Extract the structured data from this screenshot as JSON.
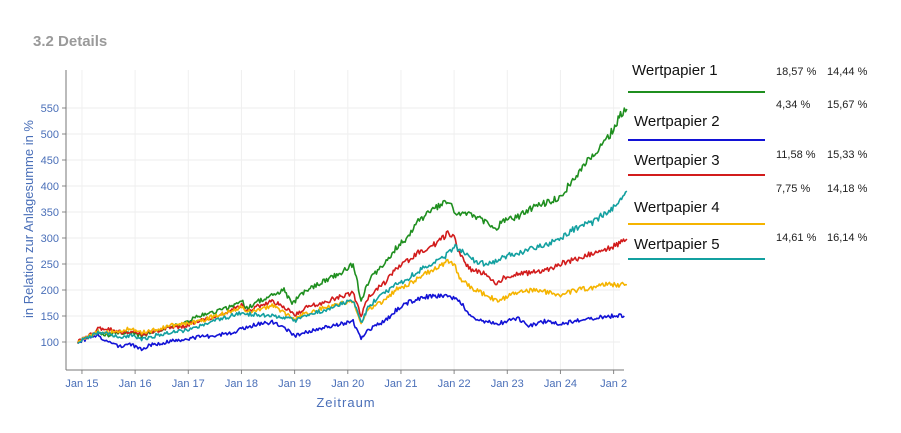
{
  "section": {
    "title": "3.2 Details"
  },
  "chart_data": {
    "type": "line",
    "xlabel": "Zeitraum",
    "ylabel": "in Relation zur Anlagesumme in %",
    "x_ticks": [
      "Jan 15",
      "Jan 16",
      "Jan 17",
      "Jan 18",
      "Jan 19",
      "Jan 20",
      "Jan 21",
      "Jan 22",
      "Jan 23",
      "Jan 24",
      "Jan 2"
    ],
    "y_ticks": [
      100,
      150,
      200,
      250,
      300,
      350,
      400,
      450,
      500,
      550
    ],
    "ylim": [
      50,
      570
    ],
    "xlim": [
      2014.7,
      2025.12
    ],
    "grid": true,
    "series": [
      {
        "name": "Wertpapier 1",
        "color": "#1f8f1f",
        "stat1": "18,57 %",
        "stat2": "14,44 %",
        "points": [
          [
            2014.92,
            100
          ],
          [
            2015.1,
            108
          ],
          [
            2015.3,
            120
          ],
          [
            2015.5,
            112
          ],
          [
            2015.7,
            120
          ],
          [
            2015.9,
            116
          ],
          [
            2016.1,
            112
          ],
          [
            2016.3,
            118
          ],
          [
            2016.5,
            125
          ],
          [
            2016.7,
            130
          ],
          [
            2016.9,
            135
          ],
          [
            2017.2,
            150
          ],
          [
            2017.5,
            158
          ],
          [
            2017.8,
            168
          ],
          [
            2018.0,
            180
          ],
          [
            2018.1,
            165
          ],
          [
            2018.3,
            178
          ],
          [
            2018.5,
            185
          ],
          [
            2018.8,
            200
          ],
          [
            2018.95,
            172
          ],
          [
            2019.1,
            190
          ],
          [
            2019.4,
            210
          ],
          [
            2019.6,
            220
          ],
          [
            2019.9,
            235
          ],
          [
            2020.1,
            250
          ],
          [
            2020.18,
            215
          ],
          [
            2020.25,
            178
          ],
          [
            2020.4,
            220
          ],
          [
            2020.7,
            250
          ],
          [
            2020.9,
            280
          ],
          [
            2021.1,
            300
          ],
          [
            2021.3,
            330
          ],
          [
            2021.6,
            355
          ],
          [
            2021.9,
            370
          ],
          [
            2022.0,
            350
          ],
          [
            2022.3,
            345
          ],
          [
            2022.6,
            330
          ],
          [
            2022.8,
            320
          ],
          [
            2022.95,
            335
          ],
          [
            2023.2,
            340
          ],
          [
            2023.5,
            360
          ],
          [
            2023.8,
            370
          ],
          [
            2024.0,
            380
          ],
          [
            2024.3,
            420
          ],
          [
            2024.6,
            460
          ],
          [
            2024.8,
            480
          ],
          [
            2025.0,
            510
          ],
          [
            2025.15,
            540
          ],
          [
            2025.25,
            548
          ]
        ]
      },
      {
        "name": "Wertpapier 2",
        "color": "#1212d6",
        "stat1": "4,34 %",
        "stat2": "15,67 %",
        "points": [
          [
            2014.92,
            100
          ],
          [
            2015.1,
            106
          ],
          [
            2015.3,
            112
          ],
          [
            2015.5,
            100
          ],
          [
            2015.7,
            92
          ],
          [
            2015.9,
            96
          ],
          [
            2016.1,
            86
          ],
          [
            2016.3,
            95
          ],
          [
            2016.6,
            100
          ],
          [
            2016.9,
            105
          ],
          [
            2017.2,
            110
          ],
          [
            2017.5,
            112
          ],
          [
            2017.8,
            118
          ],
          [
            2018.0,
            125
          ],
          [
            2018.3,
            135
          ],
          [
            2018.6,
            138
          ],
          [
            2018.9,
            120
          ],
          [
            2019.0,
            112
          ],
          [
            2019.3,
            122
          ],
          [
            2019.6,
            130
          ],
          [
            2019.9,
            135
          ],
          [
            2020.1,
            140
          ],
          [
            2020.18,
            122
          ],
          [
            2020.25,
            108
          ],
          [
            2020.4,
            125
          ],
          [
            2020.7,
            140
          ],
          [
            2020.9,
            160
          ],
          [
            2021.1,
            175
          ],
          [
            2021.3,
            182
          ],
          [
            2021.6,
            190
          ],
          [
            2021.9,
            186
          ],
          [
            2022.1,
            180
          ],
          [
            2022.3,
            150
          ],
          [
            2022.5,
            140
          ],
          [
            2022.8,
            135
          ],
          [
            2023.0,
            140
          ],
          [
            2023.2,
            145
          ],
          [
            2023.4,
            130
          ],
          [
            2023.7,
            140
          ],
          [
            2024.0,
            135
          ],
          [
            2024.3,
            140
          ],
          [
            2024.6,
            145
          ],
          [
            2024.9,
            150
          ],
          [
            2025.1,
            150
          ],
          [
            2025.2,
            150
          ]
        ]
      },
      {
        "name": "Wertpapier 3",
        "color": "#d21c1c",
        "stat1": "11,58 %",
        "stat2": "15,33 %",
        "points": [
          [
            2014.92,
            100
          ],
          [
            2015.1,
            110
          ],
          [
            2015.3,
            125
          ],
          [
            2015.5,
            125
          ],
          [
            2015.7,
            120
          ],
          [
            2015.9,
            118
          ],
          [
            2016.1,
            115
          ],
          [
            2016.3,
            118
          ],
          [
            2016.5,
            125
          ],
          [
            2016.7,
            128
          ],
          [
            2016.9,
            130
          ],
          [
            2017.2,
            140
          ],
          [
            2017.5,
            148
          ],
          [
            2017.8,
            160
          ],
          [
            2018.0,
            170
          ],
          [
            2018.1,
            160
          ],
          [
            2018.3,
            168
          ],
          [
            2018.6,
            178
          ],
          [
            2018.9,
            160
          ],
          [
            2019.0,
            152
          ],
          [
            2019.2,
            165
          ],
          [
            2019.5,
            175
          ],
          [
            2019.8,
            185
          ],
          [
            2020.1,
            195
          ],
          [
            2020.18,
            170
          ],
          [
            2020.25,
            150
          ],
          [
            2020.4,
            190
          ],
          [
            2020.7,
            215
          ],
          [
            2020.9,
            240
          ],
          [
            2021.1,
            255
          ],
          [
            2021.3,
            270
          ],
          [
            2021.6,
            285
          ],
          [
            2021.9,
            310
          ],
          [
            2022.0,
            300
          ],
          [
            2022.1,
            270
          ],
          [
            2022.3,
            240
          ],
          [
            2022.6,
            230
          ],
          [
            2022.8,
            210
          ],
          [
            2022.95,
            225
          ],
          [
            2023.2,
            230
          ],
          [
            2023.5,
            235
          ],
          [
            2023.8,
            240
          ],
          [
            2024.0,
            250
          ],
          [
            2024.3,
            260
          ],
          [
            2024.6,
            270
          ],
          [
            2024.9,
            280
          ],
          [
            2025.1,
            290
          ],
          [
            2025.25,
            298
          ]
        ]
      },
      {
        "name": "Wertpapier 4",
        "color": "#f5b400",
        "stat1": "7,75 %",
        "stat2": "14,18 %",
        "points": [
          [
            2014.92,
            100
          ],
          [
            2015.1,
            110
          ],
          [
            2015.3,
            120
          ],
          [
            2015.5,
            118
          ],
          [
            2015.7,
            122
          ],
          [
            2015.9,
            125
          ],
          [
            2016.1,
            118
          ],
          [
            2016.3,
            122
          ],
          [
            2016.6,
            130
          ],
          [
            2016.9,
            135
          ],
          [
            2017.2,
            140
          ],
          [
            2017.5,
            150
          ],
          [
            2017.8,
            160
          ],
          [
            2018.0,
            168
          ],
          [
            2018.1,
            158
          ],
          [
            2018.3,
            162
          ],
          [
            2018.6,
            170
          ],
          [
            2018.9,
            150
          ],
          [
            2019.0,
            145
          ],
          [
            2019.2,
            155
          ],
          [
            2019.5,
            165
          ],
          [
            2019.8,
            172
          ],
          [
            2020.1,
            180
          ],
          [
            2020.18,
            158
          ],
          [
            2020.25,
            138
          ],
          [
            2020.4,
            165
          ],
          [
            2020.7,
            180
          ],
          [
            2020.9,
            200
          ],
          [
            2021.1,
            210
          ],
          [
            2021.3,
            220
          ],
          [
            2021.6,
            240
          ],
          [
            2021.9,
            255
          ],
          [
            2022.0,
            250
          ],
          [
            2022.1,
            225
          ],
          [
            2022.3,
            205
          ],
          [
            2022.6,
            190
          ],
          [
            2022.8,
            180
          ],
          [
            2022.95,
            185
          ],
          [
            2023.2,
            195
          ],
          [
            2023.5,
            200
          ],
          [
            2023.8,
            195
          ],
          [
            2024.0,
            190
          ],
          [
            2024.3,
            200
          ],
          [
            2024.6,
            205
          ],
          [
            2024.9,
            212
          ],
          [
            2025.1,
            210
          ],
          [
            2025.25,
            210
          ]
        ]
      },
      {
        "name": "Wertpapier 5",
        "color": "#13a0a0",
        "stat1": "14,61 %",
        "stat2": "16,14 %",
        "points": [
          [
            2014.92,
            100
          ],
          [
            2015.1,
            108
          ],
          [
            2015.3,
            118
          ],
          [
            2015.5,
            115
          ],
          [
            2015.7,
            110
          ],
          [
            2015.9,
            112
          ],
          [
            2016.1,
            105
          ],
          [
            2016.3,
            110
          ],
          [
            2016.6,
            118
          ],
          [
            2016.9,
            122
          ],
          [
            2017.2,
            130
          ],
          [
            2017.5,
            140
          ],
          [
            2017.8,
            150
          ],
          [
            2018.0,
            155
          ],
          [
            2018.3,
            152
          ],
          [
            2018.6,
            150
          ],
          [
            2018.9,
            145
          ],
          [
            2019.0,
            140
          ],
          [
            2019.2,
            150
          ],
          [
            2019.5,
            160
          ],
          [
            2019.8,
            170
          ],
          [
            2020.1,
            180
          ],
          [
            2020.18,
            160
          ],
          [
            2020.25,
            135
          ],
          [
            2020.4,
            170
          ],
          [
            2020.7,
            195
          ],
          [
            2020.9,
            210
          ],
          [
            2021.1,
            220
          ],
          [
            2021.3,
            235
          ],
          [
            2021.6,
            250
          ],
          [
            2021.9,
            270
          ],
          [
            2022.0,
            285
          ],
          [
            2022.2,
            270
          ],
          [
            2022.4,
            255
          ],
          [
            2022.6,
            250
          ],
          [
            2022.8,
            255
          ],
          [
            2022.95,
            265
          ],
          [
            2023.2,
            270
          ],
          [
            2023.5,
            280
          ],
          [
            2023.8,
            290
          ],
          [
            2024.0,
            300
          ],
          [
            2024.3,
            320
          ],
          [
            2024.6,
            330
          ],
          [
            2024.8,
            345
          ],
          [
            2025.0,
            360
          ],
          [
            2025.15,
            375
          ],
          [
            2025.25,
            390
          ]
        ]
      }
    ]
  }
}
